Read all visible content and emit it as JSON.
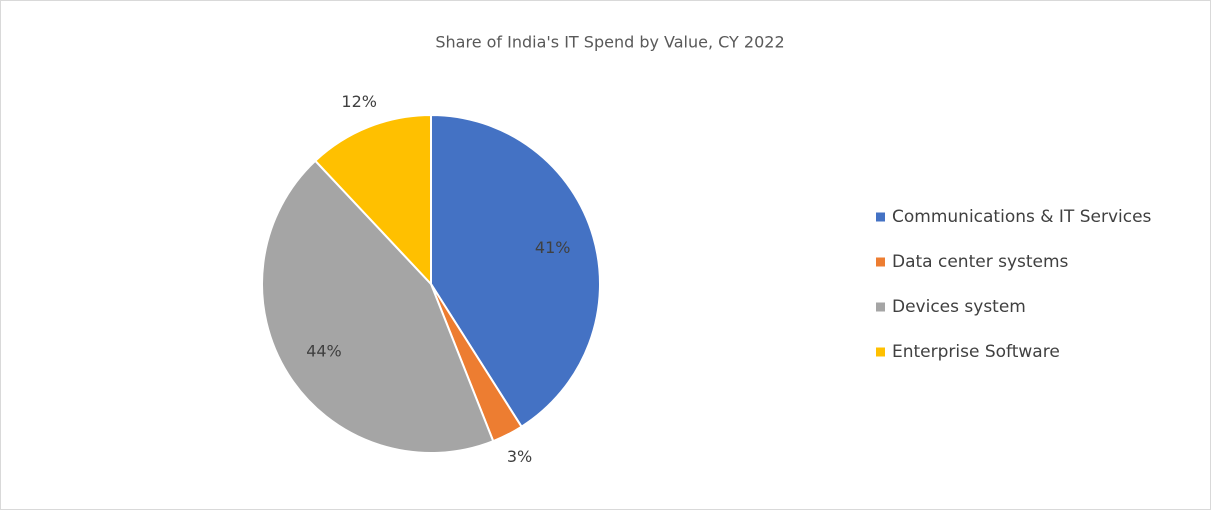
{
  "chart_data": {
    "type": "pie",
    "title": "Share of India's IT Spend by Value, CY 2022",
    "categories": [
      "Communications & IT Services",
      "Data center systems",
      "Devices system",
      "Enterprise Software"
    ],
    "values": [
      41,
      3,
      44,
      12
    ],
    "value_labels": [
      "41%",
      "3%",
      "44%",
      "12%"
    ],
    "colors": [
      "#4472c4",
      "#ed7d31",
      "#a5a5a5",
      "#ffc000"
    ],
    "legend": "right"
  }
}
